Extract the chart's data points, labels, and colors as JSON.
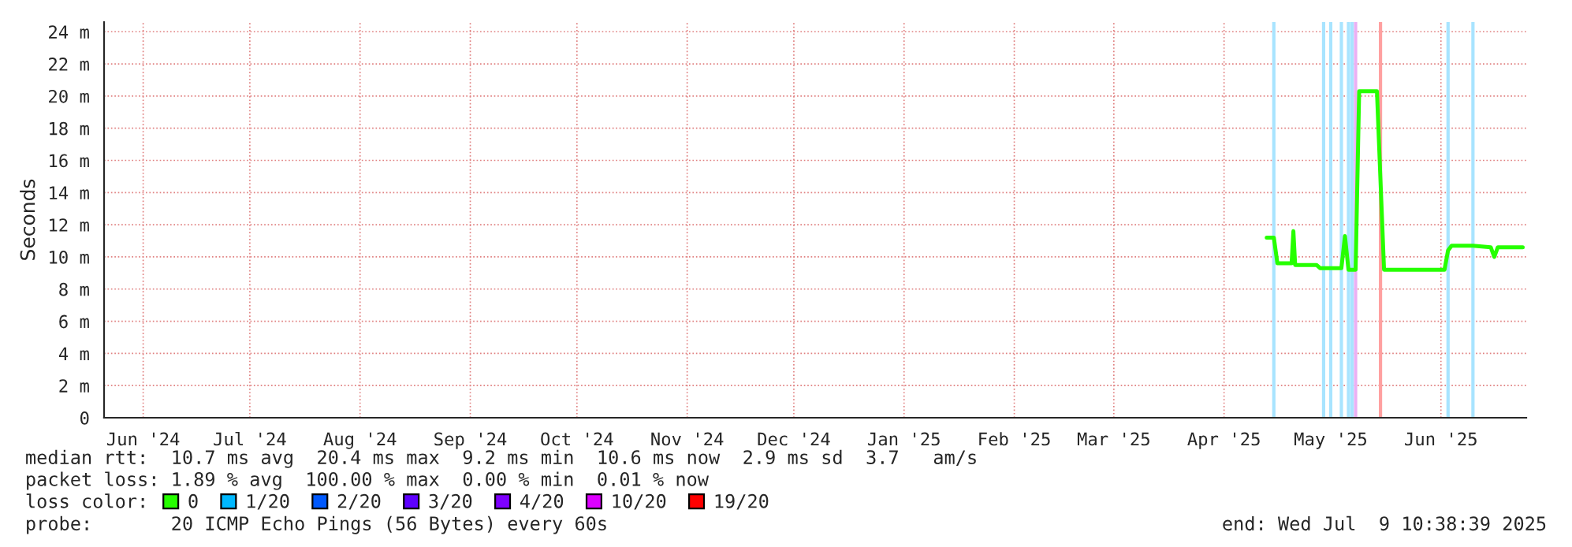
{
  "chart_data": {
    "type": "line",
    "ylabel": "Seconds",
    "legend_title": "loss color:",
    "legend": "bottom",
    "grid": true,
    "marker": "none",
    "line_style": "solid",
    "xlim": [
      "2024-06-04",
      "2025-07-09"
    ],
    "xticks": [
      {
        "value": "2024-06-15",
        "label": "Jun '24"
      },
      {
        "value": "2024-07-15",
        "label": "Jul '24"
      },
      {
        "value": "2024-08-15",
        "label": "Aug '24"
      },
      {
        "value": "2024-09-15",
        "label": "Sep '24"
      },
      {
        "value": "2024-10-15",
        "label": "Oct '24"
      },
      {
        "value": "2024-11-15",
        "label": "Nov '24"
      },
      {
        "value": "2024-12-15",
        "label": "Dec '24"
      },
      {
        "value": "2025-01-15",
        "label": "Jan '25"
      },
      {
        "value": "2025-02-15",
        "label": "Feb '25"
      },
      {
        "value": "2025-03-15",
        "label": "Mar '25"
      },
      {
        "value": "2025-04-15",
        "label": "Apr '25"
      },
      {
        "value": "2025-05-15",
        "label": "May '25"
      },
      {
        "value": "2025-06-15",
        "label": "Jun '25"
      }
    ],
    "ylim": [
      0,
      24.6
    ],
    "yticks": [
      0,
      {
        "value": 2,
        "label": "2 m"
      },
      {
        "value": 4,
        "label": "4 m"
      },
      {
        "value": 6,
        "label": "6 m"
      },
      {
        "value": 8,
        "label": "8 m"
      },
      {
        "value": 10,
        "label": "10 m"
      },
      {
        "value": 12,
        "label": "12 m"
      },
      {
        "value": 14,
        "label": "14 m"
      },
      {
        "value": 16,
        "label": "16 m"
      },
      {
        "value": 18,
        "label": "18 m"
      },
      {
        "value": 20,
        "label": "20 m"
      },
      {
        "value": 22,
        "label": "22 m"
      },
      {
        "value": 24,
        "label": "24 m"
      }
    ],
    "series": [
      {
        "name": "0",
        "color": "#26ff00",
        "x": [
          "2025-04-27",
          "2025-04-29",
          "2025-04-30",
          "2025-05-04",
          "2025-05-04T12:00",
          "2025-05-05",
          "2025-05-11",
          "2025-05-12",
          "2025-05-18",
          "2025-05-19",
          "2025-05-20",
          "2025-05-22",
          "2025-05-22T12:00",
          "2025-05-23",
          "2025-05-28",
          "2025-05-29",
          "2025-05-30",
          "2025-06-16",
          "2025-06-17",
          "2025-06-18",
          "2025-06-24",
          "2025-06-29",
          "2025-06-30",
          "2025-07-01",
          "2025-07-08"
        ],
        "values": [
          11.2,
          11.2,
          9.6,
          9.6,
          11.6,
          9.5,
          9.5,
          9.3,
          9.3,
          11.3,
          9.2,
          9.2,
          null,
          20.3,
          20.3,
          null,
          9.2,
          9.2,
          10.4,
          10.7,
          10.7,
          10.6,
          10.0,
          10.6,
          10.6
        ]
      },
      {
        "name": "1/20",
        "color": "#00b8ff"
      },
      {
        "name": "2/20",
        "color": "#0059ff"
      },
      {
        "name": "3/20",
        "color": "#5e00ff"
      },
      {
        "name": "4/20",
        "color": "#7e00ff"
      },
      {
        "name": "10/20",
        "color": "#dd00ff"
      },
      {
        "name": "19/20",
        "color": "#ff0000"
      }
    ],
    "ref_lines": [
      {
        "axis": "x",
        "value": "2025-04-29",
        "color": "#a8e4ff"
      },
      {
        "axis": "x",
        "value": "2025-05-13",
        "color": "#a8e4ff"
      },
      {
        "axis": "x",
        "value": "2025-05-15",
        "color": "#a8e4ff"
      },
      {
        "axis": "x",
        "value": "2025-05-18",
        "color": "#a8e4ff"
      },
      {
        "axis": "x",
        "value": "2025-05-20",
        "color": "#a8e4ff"
      },
      {
        "axis": "x",
        "value": "2025-05-21",
        "color": "#a8e4ff"
      },
      {
        "axis": "x",
        "value": "2025-05-22",
        "color": "#eab0f4"
      },
      {
        "axis": "x",
        "value": "2025-05-29",
        "color": "#ffa0a0"
      },
      {
        "axis": "x",
        "value": "2025-06-17",
        "color": "#a8e4ff"
      },
      {
        "axis": "x",
        "value": "2025-06-24",
        "color": "#a8e4ff"
      }
    ],
    "annotations": [
      "median rtt:  10.7 ms avg  20.4 ms max  9.2 ms min  10.6 ms now  2.9 ms sd  3.7   am/s",
      "packet loss: 1.89 % avg  100.00 % max  0.00 % min  0.01 % now",
      "probe:       20 ICMP Echo Pings (56 Bytes) every 60s",
      "end: Wed Jul  9 10:38:39 2025"
    ]
  }
}
